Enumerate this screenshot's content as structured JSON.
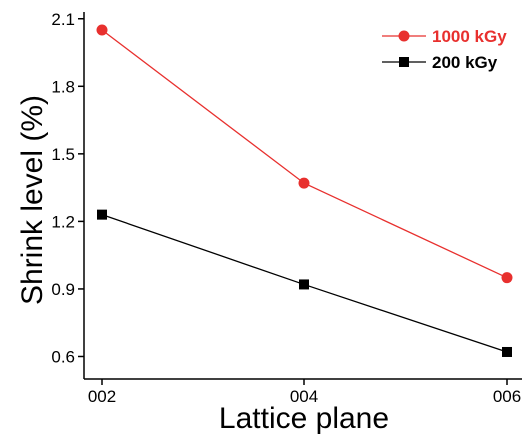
{
  "chart_data": {
    "type": "line",
    "xlabel": "Lattice plane",
    "ylabel": "Shrink level (%)",
    "categories": [
      "002",
      "004",
      "006"
    ],
    "yticks": [
      "0.6",
      "0.9",
      "1.2",
      "1.5",
      "1.8",
      "2.1"
    ],
    "ylim": [
      0.5,
      2.13
    ],
    "grid": false,
    "legend_position": "top-right",
    "series": [
      {
        "name": "1000 kGy",
        "values": [
          2.05,
          1.37,
          0.95
        ],
        "color": "#e8302e",
        "marker": "circle"
      },
      {
        "name": "200 kGy",
        "values": [
          1.23,
          0.92,
          0.62
        ],
        "color": "#000000",
        "marker": "square"
      }
    ]
  }
}
